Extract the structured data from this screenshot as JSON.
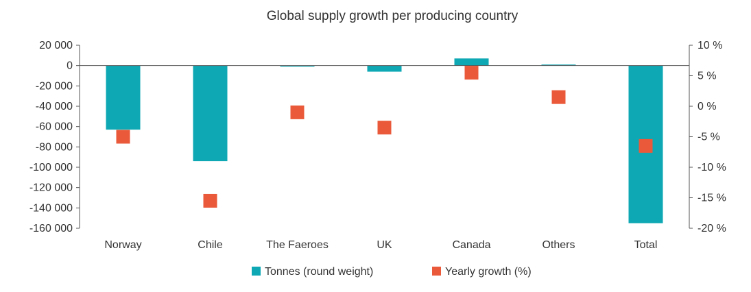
{
  "chart_data": {
    "type": "bar",
    "title": "Global supply growth per producing country",
    "categories": [
      "Norway",
      "Chile",
      "The Faeroes",
      "UK",
      "Canada",
      "Others",
      "Total"
    ],
    "series": [
      {
        "name": "Tonnes (round weight)",
        "type": "bar",
        "axis": "left",
        "color": "#0ea8b4",
        "values": [
          -63000,
          -94000,
          -1000,
          -6000,
          7000,
          1000,
          -155000
        ]
      },
      {
        "name": "Yearly growth (%)",
        "type": "marker",
        "axis": "right",
        "color": "#ea5a3a",
        "values": [
          -5,
          -15.5,
          -1,
          -3.5,
          5.5,
          1.5,
          -6.5
        ]
      }
    ],
    "y_left": {
      "ylim": [
        -160000,
        20000
      ],
      "ticks": [
        20000,
        0,
        -20000,
        -40000,
        -60000,
        -80000,
        -100000,
        -120000,
        -140000,
        -160000
      ],
      "tick_labels": [
        "20 000",
        "0",
        "-20 000",
        "-40 000",
        "-60 000",
        "-80 000",
        "-100 000",
        "-120 000",
        "-140 000",
        "-160 000"
      ]
    },
    "y_right": {
      "ylim": [
        -20,
        10
      ],
      "ticks": [
        10,
        5,
        0,
        -5,
        -10,
        -15,
        -20
      ],
      "tick_labels": [
        "10 %",
        "5 %",
        "0 %",
        "-5 %",
        "-10 %",
        "-15 %",
        "-20 %"
      ]
    },
    "legend_position": "bottom-center",
    "grid": false
  }
}
